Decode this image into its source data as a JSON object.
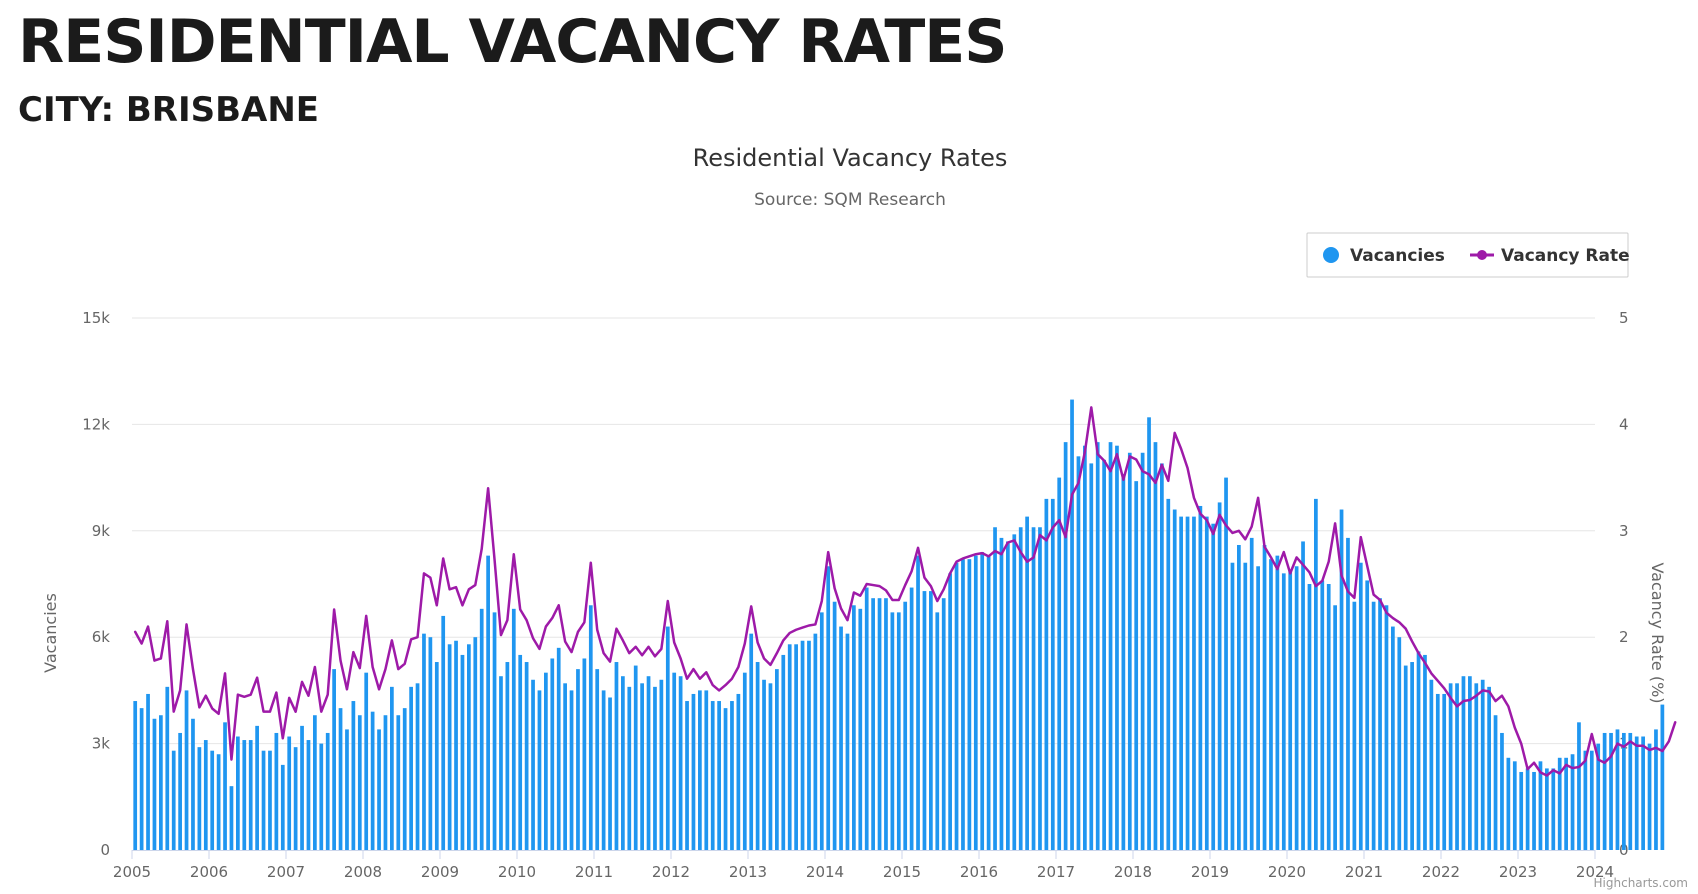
{
  "page": {
    "heading": "RESIDENTIAL VACANCY RATES",
    "subheading": "CITY: BRISBANE"
  },
  "chart_data": {
    "type": "bar",
    "title": "Residential Vacancy Rates",
    "subtitle": "Source: SQM Research",
    "credits": "Highcharts.com",
    "legend_position": "top-right",
    "grid": true,
    "x_axis": {
      "start": 2005,
      "end": 2024,
      "ticks": [
        "2005",
        "2006",
        "2007",
        "2008",
        "2009",
        "2010",
        "2011",
        "2012",
        "2013",
        "2014",
        "2015",
        "2016",
        "2017",
        "2018",
        "2019",
        "2020",
        "2021",
        "2022",
        "2023",
        "2024"
      ]
    },
    "y_axis_left": {
      "title": "Vacancies",
      "min": 0,
      "max": 15000,
      "ticks": [
        "0",
        "3k",
        "6k",
        "9k",
        "12k",
        "15k"
      ]
    },
    "y_axis_right": {
      "title": "Vacancy Rate (%)",
      "min": 0,
      "max": 5,
      "ticks": [
        "0",
        "1",
        "2",
        "3",
        "4",
        "5"
      ]
    },
    "series": [
      {
        "name": "Vacancies",
        "type": "column",
        "color": "#1f96f0",
        "start": "2005-01",
        "values": [
          4200,
          4000,
          4400,
          3700,
          3800,
          4600,
          2800,
          3300,
          4500,
          3700,
          2900,
          3100,
          2800,
          2700,
          3600,
          1800,
          3200,
          3100,
          3100,
          3500,
          2800,
          2800,
          3300,
          2400,
          3200,
          2900,
          3500,
          3100,
          3800,
          3000,
          3300,
          5100,
          4000,
          3400,
          4200,
          3800,
          5000,
          3900,
          3400,
          3800,
          4600,
          3800,
          4000,
          4600,
          4700,
          6100,
          6000,
          5300,
          6600,
          5800,
          5900,
          5500,
          5800,
          6000,
          6800,
          8300,
          6700,
          4900,
          5300,
          6800,
          5500,
          5300,
          4800,
          4500,
          5000,
          5400,
          5700,
          4700,
          4500,
          5100,
          5400,
          6900,
          5100,
          4500,
          4300,
          5300,
          4900,
          4600,
          5200,
          4700,
          4900,
          4600,
          4800,
          6300,
          5000,
          4900,
          4200,
          4400,
          4500,
          4500,
          4200,
          4200,
          4000,
          4200,
          4400,
          5000,
          6100,
          5300,
          4800,
          4700,
          5100,
          5500,
          5800,
          5800,
          5900,
          5900,
          6100,
          6700,
          8000,
          7000,
          6300,
          6100,
          6900,
          6800,
          7400,
          7100,
          7100,
          7100,
          6700,
          6700,
          7000,
          7400,
          8300,
          7300,
          7300,
          6700,
          7100,
          7800,
          8100,
          8200,
          8200,
          8300,
          8400,
          8300,
          9100,
          8800,
          8700,
          8900,
          9100,
          9400,
          9100,
          9100,
          9900,
          9900,
          10500,
          11500,
          12700,
          11100,
          11400,
          10900,
          11500,
          11000,
          11500,
          11400,
          10600,
          11200,
          10400,
          11200,
          12200,
          11500,
          10900,
          9900,
          9600,
          9400,
          9400,
          9400,
          9700,
          9400,
          9200,
          9800,
          10500,
          8100,
          8600,
          8100,
          8800,
          8000,
          8600,
          8200,
          8300,
          7800,
          7900,
          8000,
          8700,
          7500,
          9900,
          7600,
          7500,
          6900,
          9600,
          8800,
          7000,
          8100,
          7600,
          7000,
          7100,
          6900,
          6300,
          6000,
          5200,
          5300,
          5600,
          5500,
          4800,
          4400,
          4400,
          4700,
          4700,
          4900,
          4900,
          4700,
          4800,
          4600,
          3800,
          3300,
          2600,
          2500,
          2200,
          2300,
          2200,
          2500,
          2300,
          2300,
          2600,
          2600,
          2700,
          3600,
          2800,
          2800,
          3000,
          3300,
          3300,
          3400,
          3300,
          3300,
          3200,
          3200,
          3000,
          3400,
          4100
        ]
      },
      {
        "name": "Vacancy Rate",
        "type": "line",
        "color": "#9e1aa8",
        "start": "2005-01",
        "values": [
          2.05,
          1.94,
          2.1,
          1.78,
          1.8,
          2.15,
          1.3,
          1.5,
          2.12,
          1.7,
          1.34,
          1.45,
          1.33,
          1.28,
          1.66,
          0.85,
          1.46,
          1.44,
          1.46,
          1.62,
          1.3,
          1.3,
          1.48,
          1.05,
          1.43,
          1.3,
          1.58,
          1.45,
          1.72,
          1.3,
          1.46,
          2.26,
          1.78,
          1.51,
          1.86,
          1.71,
          2.2,
          1.72,
          1.51,
          1.7,
          1.97,
          1.7,
          1.75,
          1.98,
          2.0,
          2.6,
          2.56,
          2.3,
          2.74,
          2.45,
          2.47,
          2.3,
          2.45,
          2.49,
          2.83,
          3.4,
          2.73,
          2.02,
          2.16,
          2.78,
          2.26,
          2.16,
          1.99,
          1.89,
          2.1,
          2.18,
          2.3,
          1.96,
          1.86,
          2.05,
          2.14,
          2.7,
          2.07,
          1.85,
          1.77,
          2.08,
          1.97,
          1.85,
          1.91,
          1.83,
          1.91,
          1.82,
          1.89,
          2.34,
          1.95,
          1.8,
          1.61,
          1.7,
          1.61,
          1.67,
          1.55,
          1.5,
          1.55,
          1.61,
          1.72,
          1.94,
          2.29,
          1.95,
          1.8,
          1.74,
          1.85,
          1.97,
          2.04,
          2.07,
          2.09,
          2.11,
          2.12,
          2.34,
          2.8,
          2.46,
          2.27,
          2.16,
          2.42,
          2.39,
          2.5,
          2.49,
          2.48,
          2.44,
          2.35,
          2.35,
          2.49,
          2.62,
          2.84,
          2.56,
          2.48,
          2.34,
          2.45,
          2.6,
          2.71,
          2.74,
          2.76,
          2.78,
          2.79,
          2.76,
          2.81,
          2.78,
          2.89,
          2.91,
          2.8,
          2.71,
          2.75,
          2.96,
          2.91,
          3.03,
          3.1,
          2.94,
          3.34,
          3.45,
          3.74,
          4.16,
          3.72,
          3.66,
          3.56,
          3.72,
          3.48,
          3.7,
          3.67,
          3.56,
          3.53,
          3.45,
          3.62,
          3.47,
          3.92,
          3.77,
          3.59,
          3.31,
          3.16,
          3.1,
          2.97,
          3.15,
          3.05,
          2.98,
          3.0,
          2.92,
          3.04,
          3.31,
          2.85,
          2.75,
          2.64,
          2.8,
          2.6,
          2.75,
          2.68,
          2.61,
          2.48,
          2.53,
          2.71,
          3.07,
          2.58,
          2.43,
          2.37,
          2.94,
          2.67,
          2.4,
          2.35,
          2.23,
          2.18,
          2.14,
          2.08,
          1.96,
          1.85,
          1.76,
          1.66,
          1.59,
          1.52,
          1.43,
          1.35,
          1.4,
          1.41,
          1.45,
          1.5,
          1.49,
          1.4,
          1.45,
          1.35,
          1.15,
          1.0,
          0.76,
          0.82,
          0.73,
          0.7,
          0.75,
          0.72,
          0.8,
          0.77,
          0.78,
          0.84,
          1.09,
          0.85,
          0.82,
          0.88,
          1.0,
          0.97,
          1.02,
          0.98,
          0.98,
          0.94,
          0.96,
          0.93,
          1.02,
          1.2
        ]
      }
    ]
  }
}
